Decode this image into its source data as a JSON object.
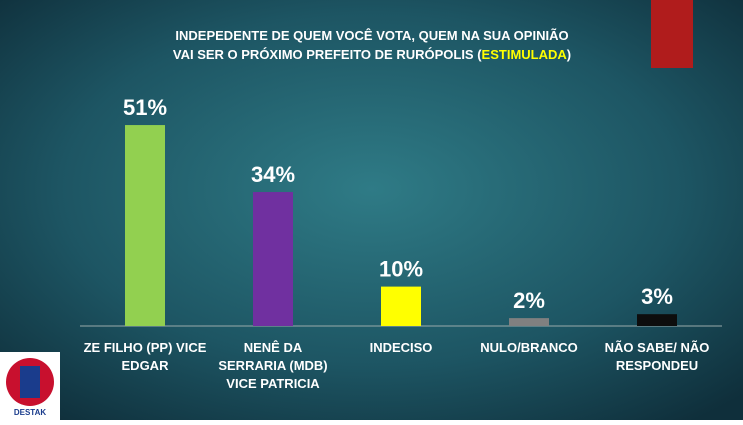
{
  "chart_data": {
    "type": "bar",
    "title_line1": "INDEPEDENTE DE QUEM VOCÊ VOTA, QUEM NA SUA OPINIÃO",
    "title_line2_start": "VAI SER O PRÓXIMO PREFEITO DE RURÓPOLIS (",
    "title_highlight": "ESTIMULADA",
    "title_line2_end": ")",
    "categories": [
      [
        "ZE FILHO (PP) VICE",
        "EDGAR"
      ],
      [
        "NENÊ DA",
        "SERRARIA (MDB)",
        "VICE PATRICIA"
      ],
      [
        "INDECISO"
      ],
      [
        "NULO/BRANCO"
      ],
      [
        "NÃO SABE/ NÃO",
        "RESPONDEU"
      ]
    ],
    "values": [
      51,
      34,
      10,
      2,
      3
    ],
    "value_labels": [
      "51%",
      "34%",
      "10%",
      "2%",
      "3%"
    ],
    "colors": [
      "#92d050",
      "#7030a0",
      "#ffff00",
      "#808080",
      "#0d0d0d"
    ],
    "logo_text": "DESTAK"
  }
}
